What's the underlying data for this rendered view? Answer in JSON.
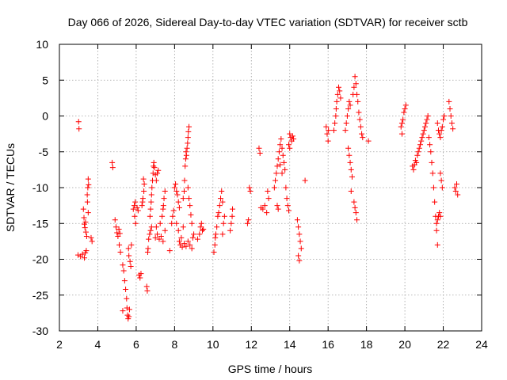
{
  "chart_data": {
    "type": "scatter",
    "title": "Day 066 of 2026, Sidereal Day-to-day VTEC variation (SDTVAR) for receiver sctb",
    "xlabel": "GPS time / hours",
    "ylabel": "SDTVAR / TECUs",
    "xlim": [
      2,
      24
    ],
    "ylim": [
      -30,
      10
    ],
    "xticks": [
      2,
      4,
      6,
      8,
      10,
      12,
      14,
      16,
      18,
      20,
      22,
      24
    ],
    "yticks": [
      -30,
      -25,
      -20,
      -15,
      -10,
      -5,
      0,
      5,
      10
    ],
    "grid": true,
    "marker": "+",
    "color": "#ff0000",
    "series": [
      {
        "name": "sctb",
        "points": [
          [
            3.0,
            -0.8
          ],
          [
            3.02,
            -1.8
          ],
          [
            2.97,
            -19.4
          ],
          [
            3.1,
            -19.6
          ],
          [
            3.2,
            -19.3
          ],
          [
            3.3,
            -19.8
          ],
          [
            3.35,
            -19.1
          ],
          [
            3.4,
            -18.8
          ],
          [
            3.25,
            -13.0
          ],
          [
            3.28,
            -14.2
          ],
          [
            3.3,
            -15.1
          ],
          [
            3.33,
            -15.6
          ],
          [
            3.38,
            -16.2
          ],
          [
            3.42,
            -16.8
          ],
          [
            3.36,
            -14.8
          ],
          [
            3.45,
            -11.0
          ],
          [
            3.48,
            -10.0
          ],
          [
            3.5,
            -8.8
          ],
          [
            3.52,
            -9.6
          ],
          [
            3.46,
            -12.0
          ],
          [
            3.5,
            -13.5
          ],
          [
            3.65,
            -17.0
          ],
          [
            3.7,
            -17.5
          ],
          [
            4.75,
            -6.5
          ],
          [
            4.78,
            -7.2
          ],
          [
            4.9,
            -14.5
          ],
          [
            4.95,
            -15.5
          ],
          [
            5.0,
            -16.3
          ],
          [
            5.05,
            -16.8
          ],
          [
            5.1,
            -15.8
          ],
          [
            5.15,
            -16.4
          ],
          [
            5.12,
            -18.0
          ],
          [
            5.18,
            -19.0
          ],
          [
            5.3,
            -20.8
          ],
          [
            5.35,
            -21.6
          ],
          [
            5.4,
            -23.0
          ],
          [
            5.45,
            -24.2
          ],
          [
            5.5,
            -25.5
          ],
          [
            5.52,
            -26.8
          ],
          [
            5.55,
            -27.8
          ],
          [
            5.58,
            -28.3
          ],
          [
            5.62,
            -28.0
          ],
          [
            5.65,
            -27.0
          ],
          [
            5.3,
            -27.2
          ],
          [
            5.6,
            -18.5
          ],
          [
            5.62,
            -19.5
          ],
          [
            5.68,
            -20.3
          ],
          [
            5.72,
            -21.0
          ],
          [
            5.75,
            -18.0
          ],
          [
            5.85,
            -13.0
          ],
          [
            5.9,
            -12.5
          ],
          [
            5.95,
            -12.0
          ],
          [
            6.05,
            -12.8
          ],
          [
            6.1,
            -13.2
          ],
          [
            5.92,
            -14.0
          ],
          [
            5.97,
            -15.0
          ],
          [
            6.15,
            -22.2
          ],
          [
            6.2,
            -22.6
          ],
          [
            6.25,
            -22.0
          ],
          [
            6.3,
            -12.5
          ],
          [
            6.35,
            -11.5
          ],
          [
            6.4,
            -10.5
          ],
          [
            6.42,
            -9.5
          ],
          [
            6.38,
            -8.8
          ],
          [
            6.33,
            -12.0
          ],
          [
            6.6,
            -19.0
          ],
          [
            6.62,
            -18.5
          ],
          [
            6.65,
            -17.2
          ],
          [
            6.7,
            -16.5
          ],
          [
            6.75,
            -16.0
          ],
          [
            6.8,
            -15.5
          ],
          [
            6.55,
            -23.8
          ],
          [
            6.58,
            -24.4
          ],
          [
            6.72,
            -14.0
          ],
          [
            6.75,
            -13.0
          ],
          [
            6.78,
            -12.0
          ],
          [
            6.8,
            -11.0
          ],
          [
            6.82,
            -10.0
          ],
          [
            6.85,
            -9.0
          ],
          [
            6.88,
            -8.0
          ],
          [
            6.9,
            -7.0
          ],
          [
            6.92,
            -6.5
          ],
          [
            6.95,
            -7.2
          ],
          [
            7.0,
            -8.2
          ],
          [
            7.05,
            -9.0
          ],
          [
            7.1,
            -8.0
          ],
          [
            7.15,
            -7.6
          ],
          [
            7.0,
            -17.0
          ],
          [
            7.1,
            -16.5
          ],
          [
            7.2,
            -17.2
          ],
          [
            7.3,
            -16.8
          ],
          [
            7.4,
            -17.5
          ],
          [
            7.5,
            -16.0
          ],
          [
            7.05,
            -15.5
          ],
          [
            7.25,
            -15.0
          ],
          [
            7.35,
            -14.0
          ],
          [
            7.4,
            -13.0
          ],
          [
            7.42,
            -12.5
          ],
          [
            7.45,
            -11.5
          ],
          [
            7.5,
            -10.5
          ],
          [
            7.75,
            -18.8
          ],
          [
            7.85,
            -15.0
          ],
          [
            7.9,
            -14.0
          ],
          [
            7.95,
            -13.2
          ],
          [
            8.0,
            -10.0
          ],
          [
            8.05,
            -9.5
          ],
          [
            8.1,
            -10.5
          ],
          [
            8.15,
            -11.0
          ],
          [
            8.2,
            -12.0
          ],
          [
            8.25,
            -12.8
          ],
          [
            8.1,
            -15.0
          ],
          [
            8.2,
            -16.0
          ],
          [
            8.25,
            -17.5
          ],
          [
            8.3,
            -18.0
          ],
          [
            8.35,
            -17.0
          ],
          [
            8.4,
            -18.3
          ],
          [
            8.5,
            -17.8
          ],
          [
            8.6,
            -18.2
          ],
          [
            8.7,
            -17.5
          ],
          [
            8.8,
            -18.0
          ],
          [
            8.9,
            -18.5
          ],
          [
            8.45,
            -15.5
          ],
          [
            8.45,
            -11.5
          ],
          [
            8.5,
            -10.5
          ],
          [
            8.52,
            -9.0
          ],
          [
            8.55,
            -7.0
          ],
          [
            8.58,
            -6.0
          ],
          [
            8.6,
            -5.0
          ],
          [
            8.65,
            -4.5
          ],
          [
            8.68,
            -3.8
          ],
          [
            8.7,
            -3.0
          ],
          [
            8.72,
            -2.2
          ],
          [
            8.75,
            -1.5
          ],
          [
            8.62,
            -5.5
          ],
          [
            8.7,
            -10.0
          ],
          [
            8.75,
            -11.5
          ],
          [
            8.8,
            -12.5
          ],
          [
            8.85,
            -13.8
          ],
          [
            8.9,
            -15.0
          ],
          [
            8.95,
            -17.0
          ],
          [
            9.0,
            -16.5
          ],
          [
            9.2,
            -17.2
          ],
          [
            9.3,
            -16.5
          ],
          [
            9.35,
            -15.5
          ],
          [
            9.4,
            -15.0
          ],
          [
            9.45,
            -16.0
          ],
          [
            9.5,
            -15.8
          ],
          [
            10.05,
            -19.0
          ],
          [
            10.1,
            -18.0
          ],
          [
            10.12,
            -17.0
          ],
          [
            10.15,
            -16.5
          ],
          [
            10.2,
            -15.5
          ],
          [
            10.25,
            -14.0
          ],
          [
            10.3,
            -13.5
          ],
          [
            10.35,
            -12.5
          ],
          [
            10.4,
            -11.5
          ],
          [
            10.45,
            -10.5
          ],
          [
            10.5,
            -12.0
          ],
          [
            10.5,
            -16.5
          ],
          [
            10.55,
            -15.0
          ],
          [
            10.6,
            -14.0
          ],
          [
            10.9,
            -16.0
          ],
          [
            10.95,
            -15.0
          ],
          [
            11.0,
            -14.0
          ],
          [
            11.02,
            -13.0
          ],
          [
            11.8,
            -15.0
          ],
          [
            11.85,
            -14.5
          ],
          [
            11.9,
            -10.0
          ],
          [
            11.95,
            -10.5
          ],
          [
            12.4,
            -4.5
          ],
          [
            12.45,
            -5.2
          ],
          [
            12.5,
            -12.8
          ],
          [
            12.6,
            -13.0
          ],
          [
            12.7,
            -12.5
          ],
          [
            12.8,
            -13.5
          ],
          [
            12.9,
            -11.5
          ],
          [
            12.85,
            -10.5
          ],
          [
            13.2,
            -10.0
          ],
          [
            13.25,
            -9.0
          ],
          [
            13.3,
            -8.0
          ],
          [
            13.35,
            -7.0
          ],
          [
            13.4,
            -6.0
          ],
          [
            13.45,
            -5.0
          ],
          [
            13.5,
            -4.0
          ],
          [
            13.55,
            -3.2
          ],
          [
            13.6,
            -4.5
          ],
          [
            13.65,
            -5.5
          ],
          [
            13.7,
            -6.5
          ],
          [
            13.75,
            -7.5
          ],
          [
            13.5,
            -6.8
          ],
          [
            13.6,
            -8.0
          ],
          [
            13.35,
            -12.5
          ],
          [
            13.4,
            -13.0
          ],
          [
            13.8,
            -10.0
          ],
          [
            13.85,
            -11.5
          ],
          [
            13.9,
            -12.5
          ],
          [
            13.95,
            -13.2
          ],
          [
            14.0,
            -2.5
          ],
          [
            14.05,
            -3.0
          ],
          [
            14.1,
            -3.5
          ],
          [
            14.15,
            -2.8
          ],
          [
            14.2,
            -3.2
          ],
          [
            13.95,
            -4.0
          ],
          [
            14.0,
            -4.5
          ],
          [
            14.4,
            -14.5
          ],
          [
            14.45,
            -15.5
          ],
          [
            14.5,
            -16.5
          ],
          [
            14.55,
            -17.5
          ],
          [
            14.6,
            -18.5
          ],
          [
            14.45,
            -19.5
          ],
          [
            14.5,
            -20.2
          ],
          [
            14.8,
            -9.0
          ],
          [
            15.9,
            -1.5
          ],
          [
            15.95,
            -2.5
          ],
          [
            16.0,
            -3.5
          ],
          [
            16.02,
            -2.0
          ],
          [
            16.3,
            -2.0
          ],
          [
            16.35,
            -1.0
          ],
          [
            16.4,
            0.0
          ],
          [
            16.42,
            1.0
          ],
          [
            16.45,
            2.0
          ],
          [
            16.5,
            3.0
          ],
          [
            16.55,
            4.0
          ],
          [
            16.6,
            3.5
          ],
          [
            16.65,
            2.5
          ],
          [
            16.9,
            -2.0
          ],
          [
            16.95,
            -1.0
          ],
          [
            17.0,
            0.0
          ],
          [
            17.05,
            1.0
          ],
          [
            17.1,
            2.0
          ],
          [
            17.15,
            1.5
          ],
          [
            17.05,
            -4.5
          ],
          [
            17.1,
            -5.5
          ],
          [
            17.15,
            -6.5
          ],
          [
            17.2,
            -7.5
          ],
          [
            17.25,
            -8.5
          ],
          [
            17.2,
            -10.5
          ],
          [
            17.3,
            3.0
          ],
          [
            17.35,
            4.0
          ],
          [
            17.4,
            5.5
          ],
          [
            17.45,
            4.5
          ],
          [
            17.5,
            3.0
          ],
          [
            17.55,
            2.0
          ],
          [
            17.6,
            0.5
          ],
          [
            17.65,
            -0.5
          ],
          [
            17.7,
            -1.5
          ],
          [
            17.75,
            -2.5
          ],
          [
            17.8,
            -3.0
          ],
          [
            17.35,
            -12.0
          ],
          [
            17.4,
            -12.8
          ],
          [
            17.45,
            -13.5
          ],
          [
            17.5,
            -14.5
          ],
          [
            18.1,
            -3.5
          ],
          [
            19.8,
            -1.5
          ],
          [
            19.85,
            -1.0
          ],
          [
            19.9,
            -0.5
          ],
          [
            19.95,
            0.5
          ],
          [
            20.0,
            1.0
          ],
          [
            20.05,
            1.5
          ],
          [
            19.85,
            -2.5
          ],
          [
            20.4,
            -7.0
          ],
          [
            20.45,
            -7.5
          ],
          [
            20.5,
            -6.8
          ],
          [
            20.55,
            -6.2
          ],
          [
            20.6,
            -6.5
          ],
          [
            20.65,
            -5.5
          ],
          [
            20.7,
            -5.0
          ],
          [
            20.75,
            -4.5
          ],
          [
            20.8,
            -4.0
          ],
          [
            20.85,
            -3.5
          ],
          [
            20.9,
            -3.0
          ],
          [
            20.95,
            -2.5
          ],
          [
            21.0,
            -2.0
          ],
          [
            21.05,
            -1.5
          ],
          [
            21.1,
            -1.0
          ],
          [
            21.15,
            -0.5
          ],
          [
            21.2,
            0.0
          ],
          [
            21.25,
            -3.0
          ],
          [
            21.3,
            -4.0
          ],
          [
            21.35,
            -5.0
          ],
          [
            21.4,
            -6.5
          ],
          [
            21.45,
            -8.0
          ],
          [
            21.5,
            -10.0
          ],
          [
            21.55,
            -12.0
          ],
          [
            21.6,
            -14.0
          ],
          [
            21.65,
            -16.0
          ],
          [
            21.7,
            -18.0
          ],
          [
            21.65,
            -15.0
          ],
          [
            21.7,
            -14.5
          ],
          [
            21.75,
            -14.0
          ],
          [
            21.8,
            -13.5
          ],
          [
            21.85,
            -14.0
          ],
          [
            21.7,
            -1.0
          ],
          [
            21.75,
            -2.0
          ],
          [
            21.8,
            -2.5
          ],
          [
            21.85,
            -3.0
          ],
          [
            21.9,
            -2.0
          ],
          [
            21.95,
            -1.5
          ],
          [
            22.0,
            -0.5
          ],
          [
            22.05,
            0.0
          ],
          [
            21.85,
            -8.0
          ],
          [
            21.9,
            -9.0
          ],
          [
            21.95,
            -10.0
          ],
          [
            22.3,
            2.0
          ],
          [
            22.35,
            1.0
          ],
          [
            22.4,
            0.0
          ],
          [
            22.45,
            -1.0
          ],
          [
            22.5,
            -1.8
          ],
          [
            22.6,
            -10.0
          ],
          [
            22.65,
            -10.5
          ],
          [
            22.7,
            -9.5
          ],
          [
            22.75,
            -11.0
          ]
        ]
      }
    ]
  }
}
